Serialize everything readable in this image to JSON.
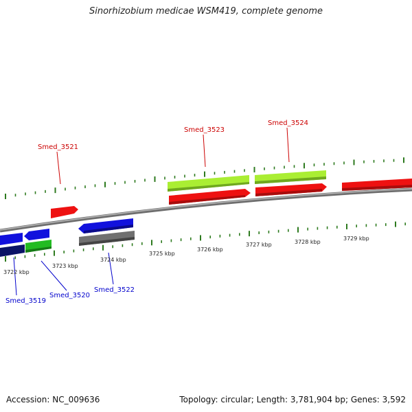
{
  "title": "Sinorhizobium medicae WSM419, complete genome",
  "footer": {
    "accession": "Accession: NC_009636",
    "stats": "Topology: circular; Length: 3,781,904 bp; Genes: 3,592"
  },
  "scale_labels": [
    "3722 kbp",
    "3723 kbp",
    "3724 kbp",
    "3725 kbp",
    "3726 kbp",
    "3727 kbp",
    "3728 kbp",
    "3729 kbp"
  ],
  "genes_top": [
    {
      "label": "Smed_3521",
      "color": "#cc0000"
    },
    {
      "label": "Smed_3523",
      "color": "#cc0000"
    },
    {
      "label": "Smed_3524",
      "color": "#cc0000"
    }
  ],
  "genes_bottom": [
    {
      "label": "Smed_3519",
      "color": "#0000cc"
    },
    {
      "label": "Smed_3520",
      "color": "#0000cc"
    },
    {
      "label": "Smed_3522",
      "color": "#0000cc"
    }
  ],
  "colors": {
    "backbone": "#8c8c8c",
    "tick": "#2d7a1e",
    "cds_red": "#ee1111",
    "cds_blue": "#1111dd",
    "cds_navy": "#0b1466",
    "cds_green": "#22bb22",
    "cds_lime": "#aaee33",
    "cds_gray": "#707070"
  }
}
